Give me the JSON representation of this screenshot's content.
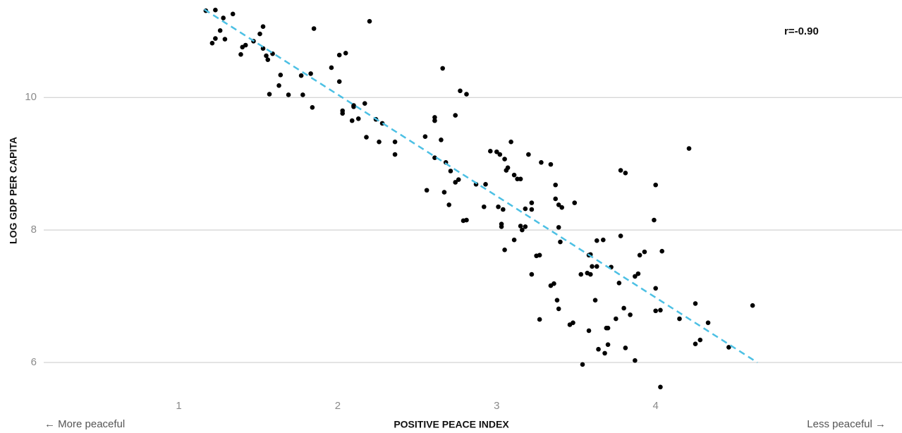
{
  "chart_data": {
    "type": "scatter",
    "xlabel": "POSITIVE PEACE INDEX",
    "ylabel": "LOG GDP PER CAPITA",
    "annotations": [
      "← More peaceful",
      "Less peaceful →",
      "r=-0.90"
    ],
    "xlim": [
      0.15,
      5.55
    ],
    "ylim": [
      5.5,
      11.45
    ],
    "xticks": [
      1,
      2,
      3,
      4
    ],
    "yticks": [
      6,
      8,
      10
    ],
    "grid": true,
    "color": "#000000",
    "trendline": {
      "color": "#4cc0e4",
      "x": [
        1.16,
        4.64
      ],
      "y": [
        11.33,
        6.0
      ]
    },
    "x": [
      1.17,
      1.23,
      1.28,
      1.34,
      1.21,
      1.23,
      1.26,
      1.29,
      1.39,
      1.4,
      1.42,
      1.47,
      1.51,
      1.53,
      1.53,
      1.55,
      1.56,
      1.59,
      1.57,
      1.63,
      1.69,
      1.64,
      1.77,
      1.78,
      1.83,
      1.84,
      1.85,
      1.96,
      2.01,
      2.05,
      2.01,
      2.03,
      2.03,
      2.1,
      2.1,
      2.13,
      2.09,
      2.17,
      2.2,
      2.24,
      2.28,
      2.18,
      2.26,
      2.36,
      2.36,
      2.55,
      2.56,
      2.61,
      2.61,
      2.61,
      2.66,
      2.65,
      2.68,
      2.67,
      2.7,
      2.71,
      2.74,
      2.76,
      2.74,
      2.77,
      2.81,
      2.79,
      2.81,
      2.87,
      2.93,
      2.92,
      2.96,
      3.0,
      3.02,
      3.05,
      3.06,
      3.07,
      3.09,
      3.11,
      3.13,
      3.15,
      3.01,
      3.03,
      3.03,
      3.04,
      3.05,
      3.11,
      3.16,
      3.15,
      3.18,
      3.18,
      3.2,
      3.22,
      3.22,
      3.28,
      3.25,
      3.27,
      3.22,
      3.34,
      3.37,
      3.37,
      3.39,
      3.41,
      3.39,
      3.27,
      3.34,
      3.36,
      3.38,
      3.39,
      3.4,
      3.46,
      3.48,
      3.49,
      3.53,
      3.54,
      3.57,
      3.58,
      3.59,
      3.59,
      3.6,
      3.63,
      3.63,
      3.67,
      3.58,
      3.62,
      3.64,
      3.69,
      3.7,
      3.68,
      3.7,
      3.72,
      3.75,
      3.77,
      3.78,
      3.78,
      3.81,
      3.8,
      3.84,
      3.81,
      3.87,
      3.87,
      3.89,
      3.9,
      3.93,
      3.99,
      4.0,
      4.0,
      4.0,
      4.03,
      4.04,
      4.03,
      4.15,
      4.21,
      4.25,
      4.25,
      4.28,
      4.33,
      4.46,
      4.61
    ],
    "y": [
      11.31,
      11.32,
      11.2,
      11.26,
      10.82,
      10.89,
      11.01,
      10.88,
      10.65,
      10.76,
      10.79,
      10.85,
      10.96,
      11.07,
      10.74,
      10.63,
      10.57,
      10.66,
      10.05,
      10.18,
      10.04,
      10.34,
      10.33,
      10.04,
      10.36,
      9.85,
      11.04,
      10.45,
      10.64,
      10.67,
      10.24,
      9.8,
      9.76,
      9.88,
      9.86,
      9.68,
      9.65,
      9.91,
      11.15,
      9.67,
      9.61,
      9.4,
      9.33,
      9.33,
      9.14,
      9.41,
      8.6,
      9.7,
      9.65,
      9.09,
      10.44,
      9.36,
      9.02,
      8.57,
      8.38,
      8.89,
      8.72,
      8.76,
      9.73,
      10.1,
      10.05,
      8.14,
      8.15,
      8.69,
      8.69,
      8.35,
      9.19,
      9.18,
      9.14,
      9.07,
      8.9,
      8.94,
      9.33,
      8.83,
      8.77,
      8.77,
      8.35,
      8.09,
      8.05,
      8.31,
      7.7,
      7.85,
      8.0,
      8.06,
      8.05,
      8.32,
      9.14,
      8.41,
      8.31,
      9.02,
      7.61,
      7.62,
      7.33,
      8.99,
      8.68,
      8.47,
      8.38,
      8.34,
      8.04,
      6.65,
      7.16,
      7.19,
      6.94,
      6.81,
      7.82,
      6.57,
      6.6,
      8.41,
      7.33,
      5.97,
      7.35,
      7.62,
      7.63,
      7.33,
      7.45,
      7.45,
      7.84,
      7.85,
      6.48,
      6.94,
      6.2,
      6.52,
      6.52,
      6.14,
      6.27,
      7.44,
      6.66,
      7.2,
      7.91,
      8.9,
      8.86,
      6.82,
      6.72,
      6.22,
      6.03,
      7.3,
      7.34,
      7.62,
      7.67,
      8.15,
      8.68,
      7.12,
      6.78,
      6.79,
      7.68,
      5.63,
      6.66,
      9.23,
      6.28,
      6.89,
      6.34,
      6.6,
      6.23,
      6.86
    ]
  }
}
